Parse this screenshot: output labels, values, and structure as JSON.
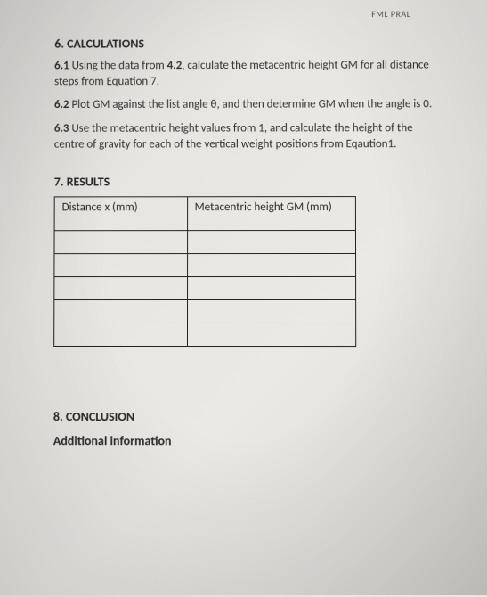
{
  "header_fragment": "FML PRAL",
  "section6": {
    "heading": "6. CALCULATIONS",
    "p1_num": "6.1",
    "p1_a": " Using the data from ",
    "p1_bold": "4.2",
    "p1_b": ", calculate the metacentric height GM for all distance steps from Equation 7.",
    "p2_num": "6.2",
    "p2": " Plot GM against the list angle θ, and then determine GM when the angle is 0.",
    "p3_num": "6.3",
    "p3": " Use the metacentric height values from 1, and calculate the height of the centre of gravity for each of the vertical weight positions from Eqaution1."
  },
  "section7": {
    "heading": "7. RESULTS",
    "col1": "Distance x  (mm)",
    "col2": "Metacentric height  GM (mm)",
    "rows": [
      [
        "",
        ""
      ],
      [
        "",
        ""
      ],
      [
        "",
        ""
      ],
      [
        "",
        ""
      ],
      [
        "",
        ""
      ]
    ]
  },
  "section8": {
    "heading": "8. CONCLUSION",
    "additional": "Additional information"
  }
}
